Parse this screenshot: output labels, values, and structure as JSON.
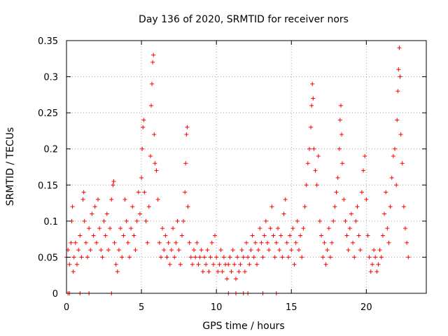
{
  "chart_data": {
    "type": "scatter",
    "title": "Day 136 of 2020, SRMTID for receiver nors",
    "xlabel": "GPS time / hours",
    "ylabel": "SRMTID / TECUs",
    "xlim": [
      0,
      24
    ],
    "ylim": [
      0,
      0.35
    ],
    "x_ticks": [
      0,
      5,
      10,
      15,
      20
    ],
    "x_tick_labels": [
      "0",
      "5",
      "10",
      "15",
      "20"
    ],
    "y_ticks": [
      0,
      0.05,
      0.1,
      0.15,
      0.2,
      0.25,
      0.3,
      0.35
    ],
    "y_tick_labels": [
      "0",
      "0.05",
      "0.1",
      "0.15",
      "0.2",
      "0.25",
      "0.3",
      "0.35"
    ],
    "grid": true,
    "marker": "+",
    "series": [
      {
        "name": "SRMTID",
        "color": "#ff0000",
        "points": [
          [
            0.0,
            0.05
          ],
          [
            0.1,
            0.06
          ],
          [
            0.2,
            0.04
          ],
          [
            0.3,
            0.07
          ],
          [
            0.35,
            0.1
          ],
          [
            0.4,
            0.12
          ],
          [
            0.45,
            0.03
          ],
          [
            0.5,
            0.05
          ],
          [
            0.6,
            0.07
          ],
          [
            0.7,
            0.04
          ],
          [
            0.8,
            0.06
          ],
          [
            0.9,
            0.08
          ],
          [
            1.0,
            0.05
          ],
          [
            1.1,
            0.13
          ],
          [
            1.15,
            0.14
          ],
          [
            1.2,
            0.1
          ],
          [
            1.3,
            0.07
          ],
          [
            1.4,
            0.05
          ],
          [
            1.5,
            0.09
          ],
          [
            1.6,
            0.06
          ],
          [
            1.7,
            0.11
          ],
          [
            1.8,
            0.08
          ],
          [
            1.9,
            0.12
          ],
          [
            2.0,
            0.07
          ],
          [
            2.1,
            0.13
          ],
          [
            2.2,
            0.09
          ],
          [
            2.3,
            0.06
          ],
          [
            2.4,
            0.05
          ],
          [
            2.5,
            0.1
          ],
          [
            2.6,
            0.08
          ],
          [
            2.7,
            0.11
          ],
          [
            2.8,
            0.06
          ],
          [
            2.9,
            0.09
          ],
          [
            3.0,
            0.13
          ],
          [
            3.1,
            0.15
          ],
          [
            3.15,
            0.155
          ],
          [
            3.2,
            0.07
          ],
          [
            3.3,
            0.04
          ],
          [
            3.4,
            0.03
          ],
          [
            3.5,
            0.06
          ],
          [
            3.6,
            0.09
          ],
          [
            3.7,
            0.05
          ],
          [
            3.8,
            0.08
          ],
          [
            3.9,
            0.13
          ],
          [
            4.0,
            0.1
          ],
          [
            4.1,
            0.07
          ],
          [
            4.2,
            0.05
          ],
          [
            4.3,
            0.09
          ],
          [
            4.4,
            0.12
          ],
          [
            4.5,
            0.08
          ],
          [
            4.6,
            0.06
          ],
          [
            4.7,
            0.1
          ],
          [
            4.8,
            0.14
          ],
          [
            4.9,
            0.11
          ],
          [
            5.0,
            0.16
          ],
          [
            5.05,
            0.2
          ],
          [
            5.1,
            0.23
          ],
          [
            5.15,
            0.24
          ],
          [
            5.2,
            0.14
          ],
          [
            5.3,
            0.1
          ],
          [
            5.4,
            0.07
          ],
          [
            5.5,
            0.12
          ],
          [
            5.6,
            0.19
          ],
          [
            5.65,
            0.26
          ],
          [
            5.7,
            0.29
          ],
          [
            5.75,
            0.32
          ],
          [
            5.8,
            0.33
          ],
          [
            5.85,
            0.22
          ],
          [
            5.9,
            0.18
          ],
          [
            6.0,
            0.17
          ],
          [
            6.1,
            0.13
          ],
          [
            6.2,
            0.07
          ],
          [
            6.3,
            0.05
          ],
          [
            6.4,
            0.09
          ],
          [
            6.5,
            0.06
          ],
          [
            6.6,
            0.08
          ],
          [
            6.7,
            0.05
          ],
          [
            6.8,
            0.07
          ],
          [
            6.9,
            0.04
          ],
          [
            7.0,
            0.06
          ],
          [
            7.1,
            0.09
          ],
          [
            7.2,
            0.05
          ],
          [
            7.3,
            0.07
          ],
          [
            7.4,
            0.1
          ],
          [
            7.5,
            0.06
          ],
          [
            7.6,
            0.04
          ],
          [
            7.7,
            0.08
          ],
          [
            7.8,
            0.1
          ],
          [
            7.9,
            0.14
          ],
          [
            7.95,
            0.18
          ],
          [
            8.0,
            0.22
          ],
          [
            8.05,
            0.23
          ],
          [
            8.1,
            0.12
          ],
          [
            8.2,
            0.07
          ],
          [
            8.3,
            0.05
          ],
          [
            8.4,
            0.04
          ],
          [
            8.5,
            0.06
          ],
          [
            8.6,
            0.05
          ],
          [
            8.7,
            0.07
          ],
          [
            8.8,
            0.04
          ],
          [
            8.9,
            0.05
          ],
          [
            9.0,
            0.06
          ],
          [
            9.1,
            0.03
          ],
          [
            9.2,
            0.05
          ],
          [
            9.3,
            0.04
          ],
          [
            9.4,
            0.06
          ],
          [
            9.5,
            0.03
          ],
          [
            9.6,
            0.05
          ],
          [
            9.7,
            0.07
          ],
          [
            9.8,
            0.04
          ],
          [
            9.9,
            0.08
          ],
          [
            10.0,
            0.05
          ],
          [
            10.1,
            0.03
          ],
          [
            10.2,
            0.04
          ],
          [
            10.3,
            0.06
          ],
          [
            10.4,
            0.03
          ],
          [
            10.5,
            0.05
          ],
          [
            10.6,
            0.04
          ],
          [
            10.7,
            0.02
          ],
          [
            10.8,
            0.04
          ],
          [
            10.9,
            0.05
          ],
          [
            11.0,
            0.03
          ],
          [
            11.1,
            0.06
          ],
          [
            11.2,
            0.04
          ],
          [
            11.3,
            0.02
          ],
          [
            11.4,
            0.05
          ],
          [
            11.5,
            0.03
          ],
          [
            11.6,
            0.04
          ],
          [
            11.7,
            0.06
          ],
          [
            11.8,
            0.05
          ],
          [
            11.9,
            0.03
          ],
          [
            12.0,
            0.07
          ],
          [
            12.1,
            0.05
          ],
          [
            12.2,
            0.04
          ],
          [
            12.3,
            0.06
          ],
          [
            12.4,
            0.08
          ],
          [
            12.5,
            0.05
          ],
          [
            12.6,
            0.07
          ],
          [
            12.7,
            0.04
          ],
          [
            12.8,
            0.06
          ],
          [
            12.9,
            0.09
          ],
          [
            13.0,
            0.07
          ],
          [
            13.1,
            0.05
          ],
          [
            13.2,
            0.08
          ],
          [
            13.3,
            0.1
          ],
          [
            13.4,
            0.07
          ],
          [
            13.5,
            0.06
          ],
          [
            13.6,
            0.09
          ],
          [
            13.7,
            0.12
          ],
          [
            13.8,
            0.08
          ],
          [
            13.9,
            0.05
          ],
          [
            14.0,
            0.07
          ],
          [
            14.1,
            0.09
          ],
          [
            14.2,
            0.06
          ],
          [
            14.3,
            0.08
          ],
          [
            14.4,
            0.05
          ],
          [
            14.5,
            0.11
          ],
          [
            14.6,
            0.13
          ],
          [
            14.7,
            0.07
          ],
          [
            14.8,
            0.05
          ],
          [
            14.9,
            0.08
          ],
          [
            15.0,
            0.06
          ],
          [
            15.1,
            0.09
          ],
          [
            15.2,
            0.04
          ],
          [
            15.3,
            0.07
          ],
          [
            15.4,
            0.1
          ],
          [
            15.5,
            0.06
          ],
          [
            15.6,
            0.08
          ],
          [
            15.7,
            0.05
          ],
          [
            15.8,
            0.09
          ],
          [
            15.9,
            0.12
          ],
          [
            16.0,
            0.15
          ],
          [
            16.1,
            0.18
          ],
          [
            16.2,
            0.2
          ],
          [
            16.3,
            0.23
          ],
          [
            16.35,
            0.26
          ],
          [
            16.4,
            0.29
          ],
          [
            16.45,
            0.27
          ],
          [
            16.5,
            0.2
          ],
          [
            16.6,
            0.17
          ],
          [
            16.7,
            0.15
          ],
          [
            16.8,
            0.19
          ],
          [
            16.9,
            0.1
          ],
          [
            17.0,
            0.08
          ],
          [
            17.1,
            0.05
          ],
          [
            17.2,
            0.07
          ],
          [
            17.3,
            0.04
          ],
          [
            17.4,
            0.06
          ],
          [
            17.5,
            0.09
          ],
          [
            17.6,
            0.05
          ],
          [
            17.7,
            0.07
          ],
          [
            17.8,
            0.1
          ],
          [
            17.9,
            0.12
          ],
          [
            18.0,
            0.14
          ],
          [
            18.1,
            0.16
          ],
          [
            18.2,
            0.2
          ],
          [
            18.25,
            0.24
          ],
          [
            18.3,
            0.26
          ],
          [
            18.35,
            0.22
          ],
          [
            18.4,
            0.18
          ],
          [
            18.5,
            0.13
          ],
          [
            18.6,
            0.1
          ],
          [
            18.7,
            0.08
          ],
          [
            18.8,
            0.06
          ],
          [
            18.9,
            0.09
          ],
          [
            19.0,
            0.11
          ],
          [
            19.1,
            0.07
          ],
          [
            19.2,
            0.05
          ],
          [
            19.3,
            0.1
          ],
          [
            19.4,
            0.12
          ],
          [
            19.5,
            0.08
          ],
          [
            19.6,
            0.06
          ],
          [
            19.7,
            0.14
          ],
          [
            19.8,
            0.17
          ],
          [
            19.9,
            0.19
          ],
          [
            20.0,
            0.13
          ],
          [
            20.1,
            0.08
          ],
          [
            20.2,
            0.05
          ],
          [
            20.3,
            0.03
          ],
          [
            20.4,
            0.04
          ],
          [
            20.5,
            0.06
          ],
          [
            20.6,
            0.05
          ],
          [
            20.7,
            0.03
          ],
          [
            20.8,
            0.04
          ],
          [
            20.9,
            0.06
          ],
          [
            21.0,
            0.05
          ],
          [
            21.1,
            0.08
          ],
          [
            21.2,
            0.11
          ],
          [
            21.3,
            0.14
          ],
          [
            21.4,
            0.09
          ],
          [
            21.5,
            0.07
          ],
          [
            21.6,
            0.12
          ],
          [
            21.7,
            0.16
          ],
          [
            21.8,
            0.19
          ],
          [
            21.9,
            0.2
          ],
          [
            22.0,
            0.15
          ],
          [
            22.05,
            0.24
          ],
          [
            22.1,
            0.28
          ],
          [
            22.15,
            0.31
          ],
          [
            22.2,
            0.34
          ],
          [
            22.25,
            0.3
          ],
          [
            22.3,
            0.22
          ],
          [
            22.4,
            0.18
          ],
          [
            22.5,
            0.12
          ],
          [
            22.6,
            0.09
          ],
          [
            22.7,
            0.07
          ],
          [
            22.8,
            0.05
          ],
          [
            0.1,
            0.0
          ],
          [
            0.2,
            0.0
          ],
          [
            0.9,
            0.0
          ],
          [
            1.5,
            0.0
          ],
          [
            3.0,
            0.0
          ],
          [
            10.8,
            0.0
          ],
          [
            11.3,
            0.0
          ],
          [
            11.8,
            0.0
          ],
          [
            12.1,
            0.0
          ],
          [
            13.1,
            0.0
          ],
          [
            14.0,
            0.0
          ]
        ]
      }
    ]
  }
}
